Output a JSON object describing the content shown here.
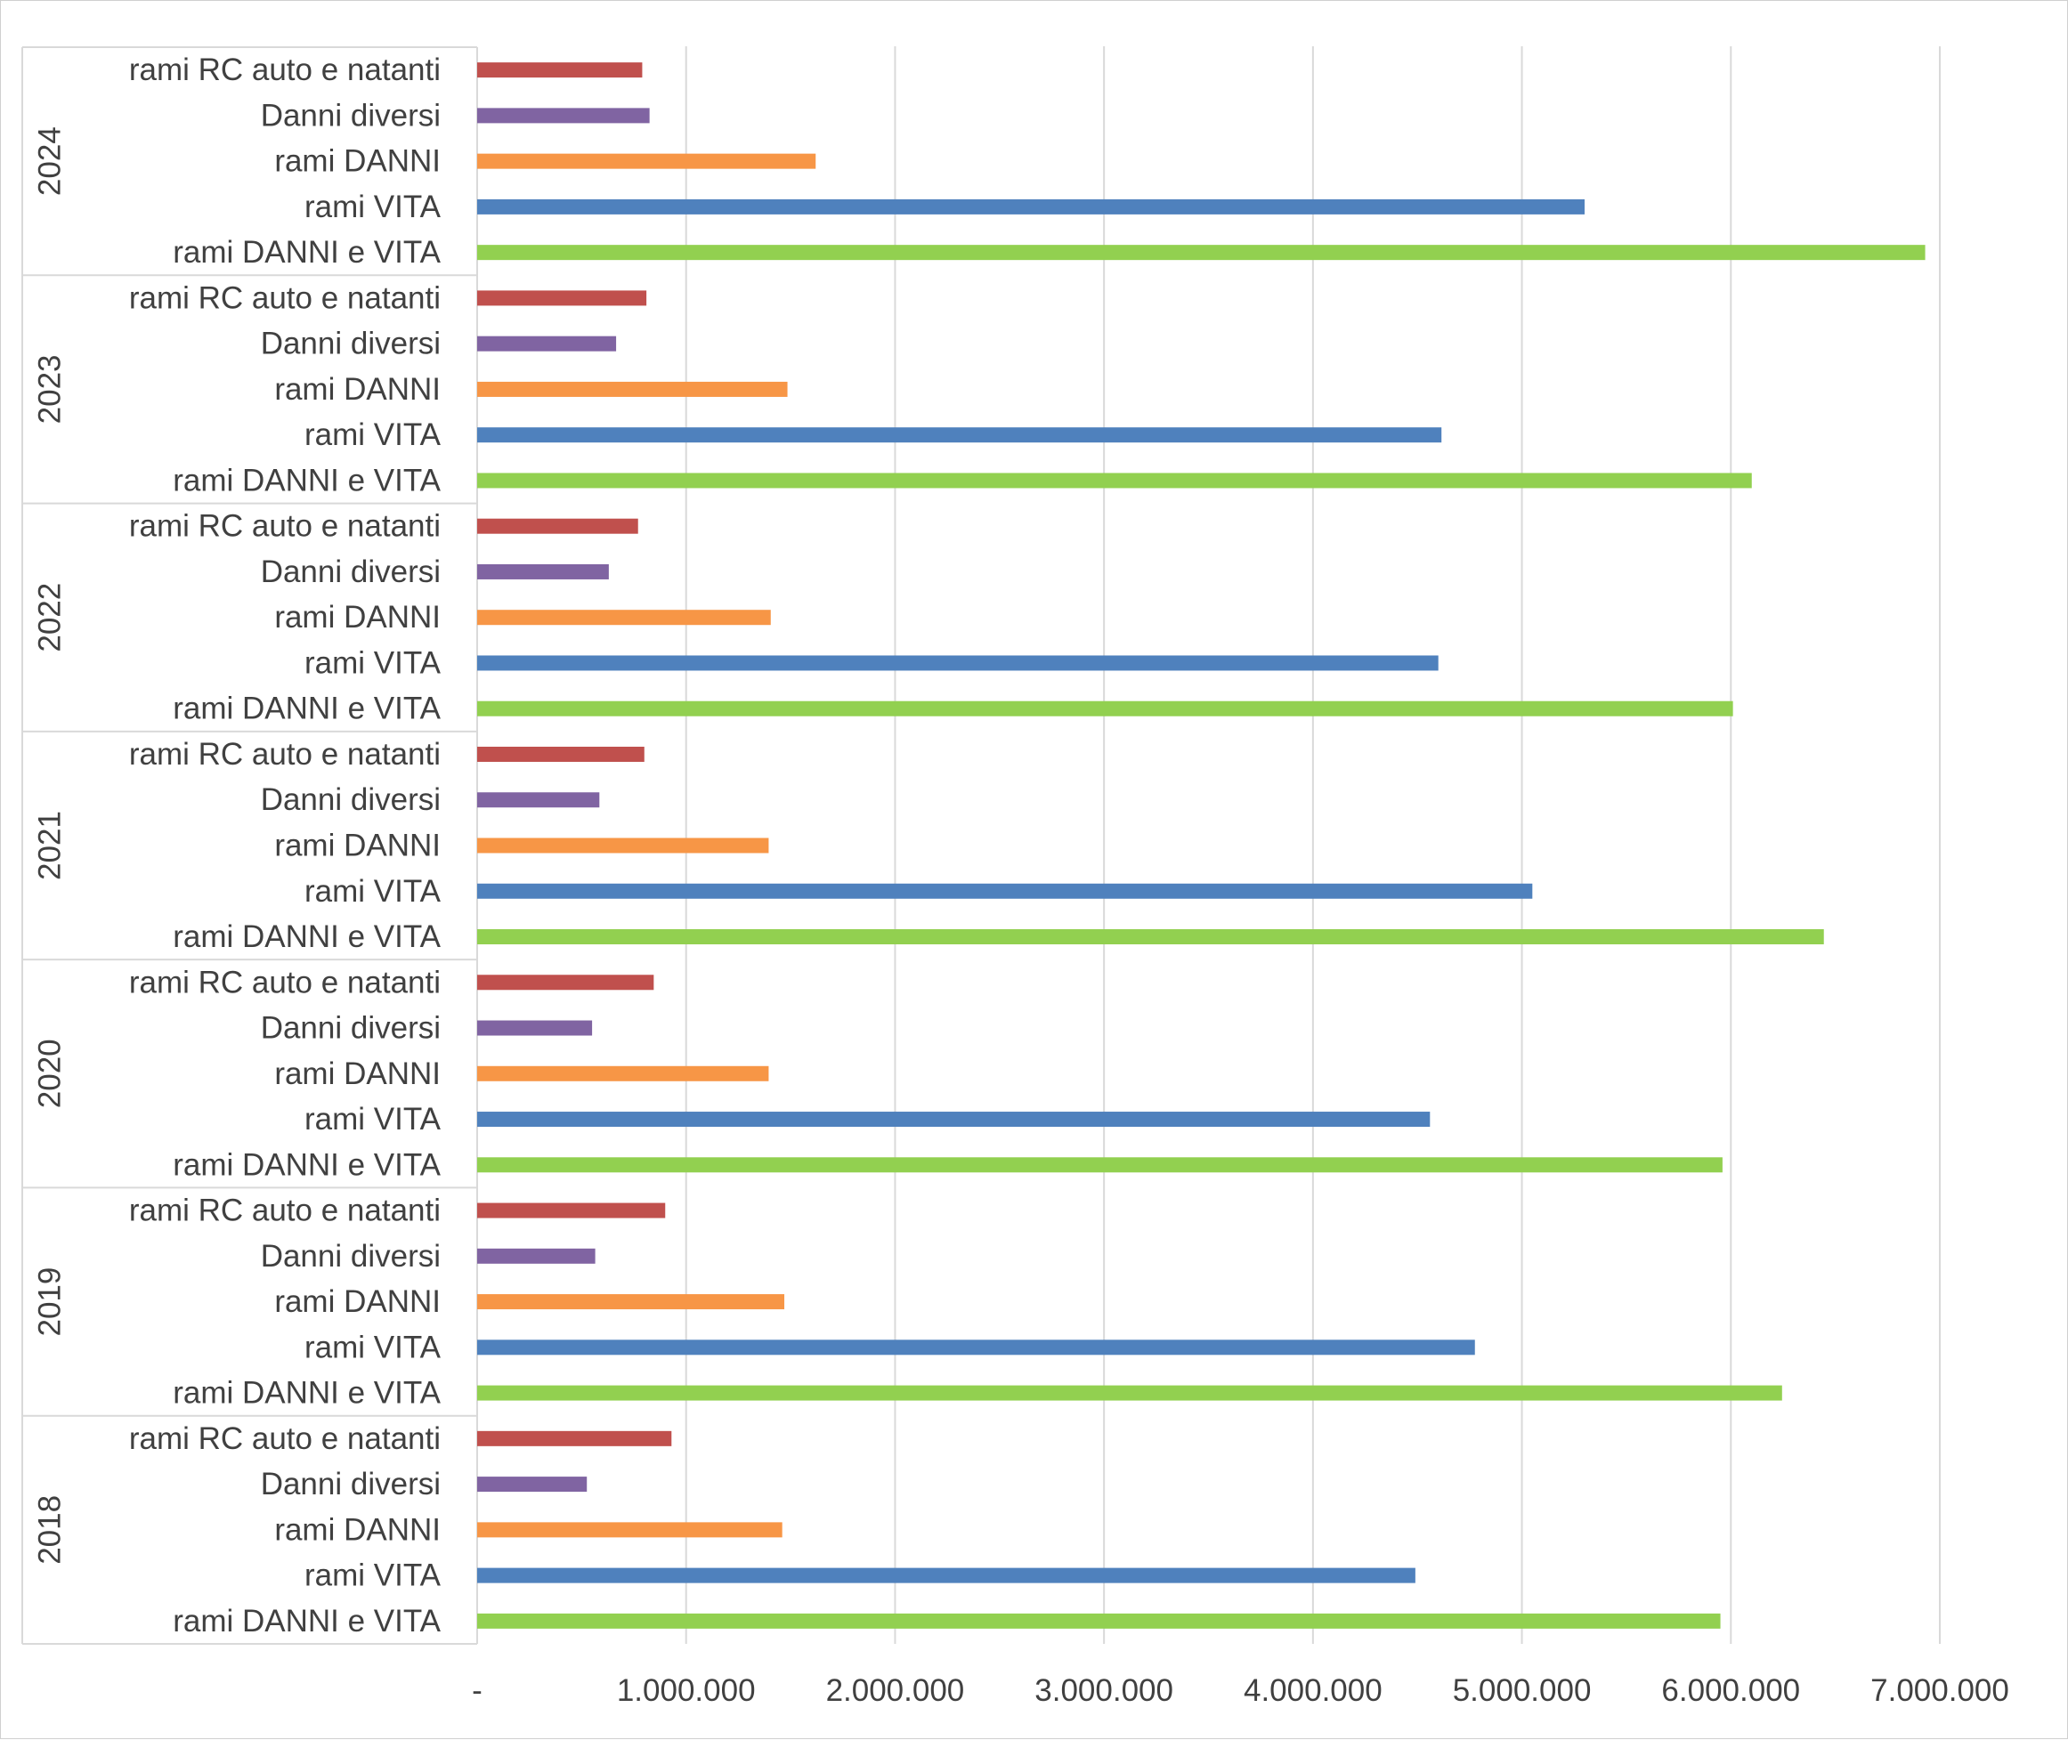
{
  "chart_data": {
    "type": "bar",
    "orientation": "horizontal",
    "title": "",
    "xlabel": "",
    "ylabel": "",
    "xlim": [
      0,
      7000000
    ],
    "x_ticks": [
      0,
      1000000,
      2000000,
      3000000,
      4000000,
      5000000,
      6000000,
      7000000
    ],
    "x_tick_labels": [
      "-",
      "1.000.000",
      "2.000.000",
      "3.000.000",
      "4.000.000",
      "5.000.000",
      "6.000.000",
      "7.000.000"
    ],
    "grid": "vertical",
    "legend": "none",
    "colors": {
      "rami RC auto e natanti": "#c0504d",
      "Danni diversi": "#8064a2",
      "rami DANNI": "#f79646",
      "rami VITA": "#4f81bd",
      "rami DANNI e VITA": "#92d050"
    },
    "categories": [
      "rami RC auto e natanti",
      "Danni diversi",
      "rami DANNI",
      "rami VITA",
      "rami DANNI e VITA"
    ],
    "groups": [
      {
        "year": "2024",
        "values": [
          790000,
          825000,
          1620000,
          5300000,
          6930000
        ]
      },
      {
        "year": "2023",
        "values": [
          810000,
          665000,
          1485000,
          4615000,
          6100000
        ]
      },
      {
        "year": "2022",
        "values": [
          770000,
          630000,
          1405000,
          4600000,
          6010000
        ]
      },
      {
        "year": "2021",
        "values": [
          800000,
          585000,
          1395000,
          5050000,
          6445000
        ]
      },
      {
        "year": "2020",
        "values": [
          845000,
          550000,
          1395000,
          4560000,
          5960000
        ]
      },
      {
        "year": "2019",
        "values": [
          900000,
          565000,
          1470000,
          4775000,
          6245000
        ]
      },
      {
        "year": "2018",
        "values": [
          930000,
          525000,
          1460000,
          4490000,
          5950000
        ]
      }
    ]
  }
}
